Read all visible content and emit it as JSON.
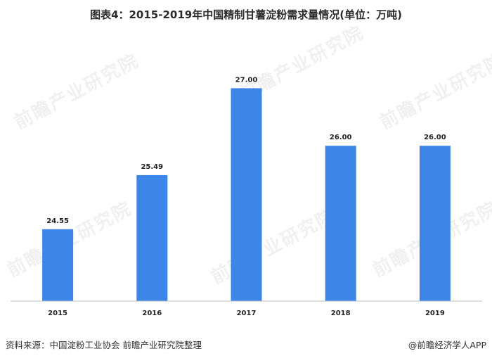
{
  "title": "图表4：2015-2019年中国精制甘薯淀粉需求量情况(单位：万吨)",
  "chart_data": {
    "type": "bar",
    "title": "图表4：2015-2019年中国精制甘薯淀粉需求量情况(单位：万吨)",
    "categories": [
      "2015",
      "2016",
      "2017",
      "2018",
      "2019"
    ],
    "values": [
      24.55,
      25.49,
      27.0,
      26.0,
      26.0
    ],
    "value_labels": [
      "24.55",
      "25.49",
      "27.00",
      "26.00",
      "26.00"
    ],
    "ylim": [
      23.3,
      27.8
    ],
    "bar_color": "#3d85e6",
    "grid": false,
    "legend": "none"
  },
  "footer": {
    "source": "资料来源：中国淀粉工业协会 前瞻产业研究院整理",
    "brand": "@前瞻经济学人APP"
  },
  "watermark": "前瞻产业研究院"
}
